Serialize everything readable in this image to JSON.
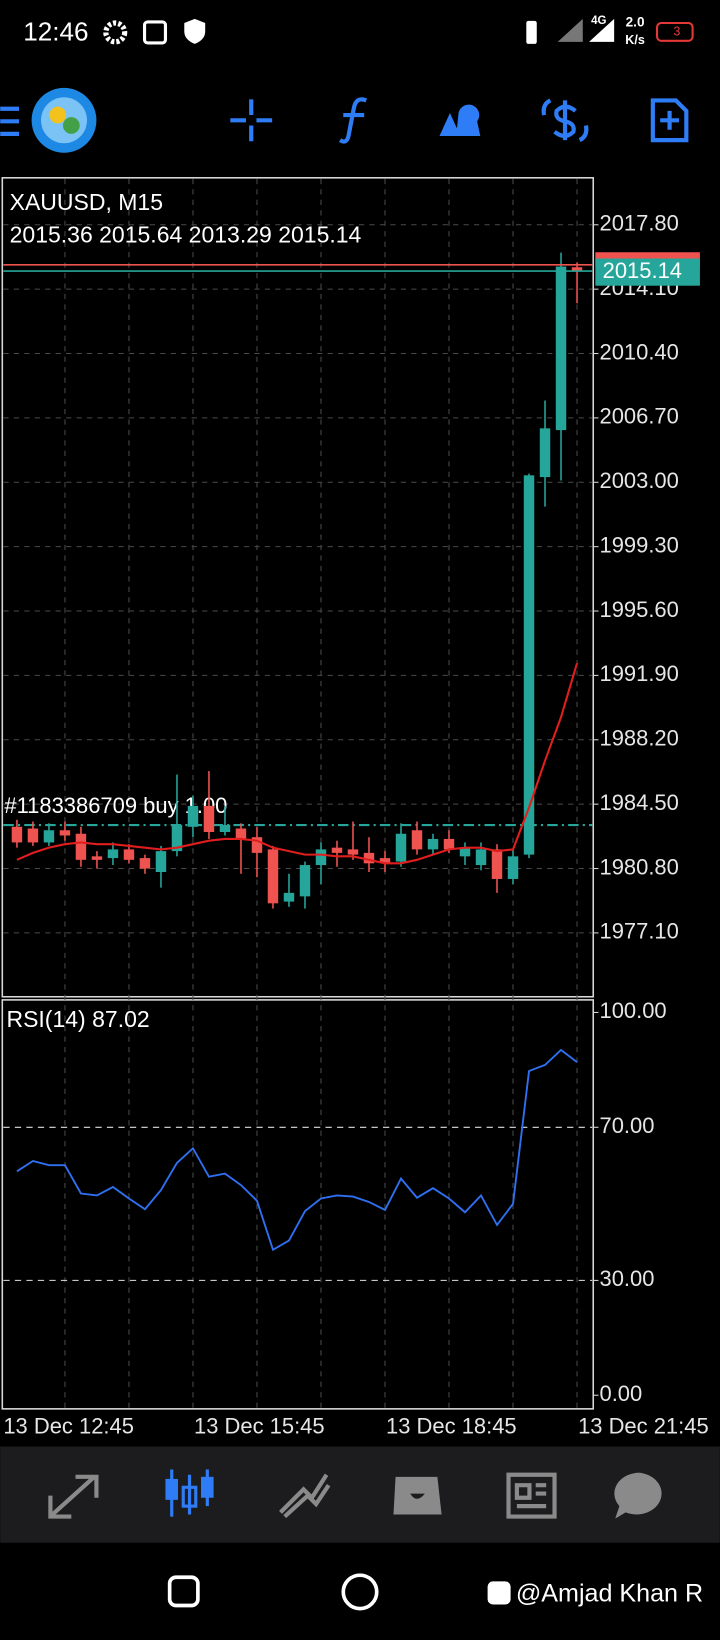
{
  "status_bar": {
    "time": "12:46",
    "network": "4G",
    "speed": "2.0",
    "speed_unit": "K/s",
    "battery": "3"
  },
  "chart_data": [
    {
      "type": "candlestick",
      "title": "XAUUSD, M15",
      "categories": [
        "13 Dec 12:45",
        null,
        null,
        null,
        null,
        null,
        null,
        null,
        null,
        null,
        null,
        "13 Dec 15:45",
        null,
        null,
        null,
        null,
        null,
        null,
        null,
        null,
        null,
        null,
        null,
        "13 Dec 18:45",
        null,
        null,
        null,
        null,
        null,
        null,
        null,
        null,
        null,
        null,
        null,
        "13 Dec 21:45"
      ],
      "open": [
        1983.2,
        1983.1,
        1982.3,
        1983.0,
        1982.8,
        1981.5,
        1981.4,
        1981.9,
        1981.4,
        1980.6,
        1981.8,
        1983.2,
        1984.4,
        1982.9,
        1983.1,
        1982.6,
        1981.9,
        1978.9,
        1979.2,
        1981.0,
        1982.0,
        1981.9,
        1981.7,
        1981.4,
        1981.2,
        1983.0,
        1981.9,
        1982.5,
        1981.5,
        1981.0,
        1981.9,
        1980.2,
        1981.6,
        2003.3,
        2006.0,
        2015.36
      ],
      "high": [
        1983.6,
        1983.5,
        1983.4,
        1983.5,
        1983.2,
        1981.8,
        1982.3,
        1982.2,
        1981.6,
        1982.1,
        1986.2,
        1985.0,
        1986.4,
        1984.4,
        1983.4,
        1983.2,
        1982.1,
        1980.5,
        1981.2,
        1982.3,
        1982.4,
        1983.5,
        1982.6,
        1981.8,
        1983.4,
        1983.5,
        1982.8,
        1983.0,
        1982.3,
        1982.3,
        1982.2,
        1981.9,
        2003.5,
        2007.7,
        2016.2,
        2015.64
      ],
      "low": [
        1982.0,
        1982.1,
        1982.1,
        1982.4,
        1980.9,
        1980.8,
        1981.0,
        1981.1,
        1980.5,
        1979.7,
        1981.5,
        1982.6,
        1982.5,
        1982.7,
        1980.5,
        1980.3,
        1978.5,
        1978.6,
        1978.5,
        1979.9,
        1980.9,
        1981.3,
        1980.6,
        1980.6,
        1980.9,
        1981.6,
        1981.6,
        1981.7,
        1981.0,
        1980.7,
        1979.4,
        1979.9,
        1981.4,
        2001.6,
        2003.1,
        2013.29
      ],
      "close": [
        1982.3,
        1982.3,
        1983.0,
        1982.7,
        1981.3,
        1981.3,
        1981.9,
        1981.3,
        1980.8,
        1981.8,
        1983.3,
        1984.4,
        1982.9,
        1983.3,
        1982.5,
        1981.7,
        1978.8,
        1979.4,
        1981.0,
        1981.9,
        1981.7,
        1981.6,
        1981.1,
        1981.1,
        1982.8,
        1981.9,
        1982.5,
        1981.9,
        1982.0,
        1981.9,
        1980.2,
        1981.5,
        2003.4,
        2006.1,
        2015.4,
        2015.14
      ],
      "up_color": "#26a69a",
      "down_color": "#ef5350",
      "moving_average": {
        "color": "#e01e1e",
        "values": [
          1981.3,
          1981.7,
          1982.0,
          1982.2,
          1982.3,
          1982.2,
          1982.2,
          1982.1,
          1982.0,
          1981.9,
          1982.0,
          1982.2,
          1982.4,
          1982.5,
          1982.5,
          1982.4,
          1982.0,
          1981.8,
          1981.6,
          1981.6,
          1981.5,
          1981.5,
          1981.3,
          1981.1,
          1981.1,
          1981.3,
          1981.6,
          1981.9,
          1982.0,
          1982.0,
          1981.8,
          1981.9,
          1984.3,
          1987.0,
          1989.5,
          1992.6
        ]
      },
      "bid_price": 2015.14,
      "ask_price": 2015.5,
      "order": {
        "label": "#1183386709 buy 1.00",
        "price": 1983.3
      },
      "ylim": [
        1973.43,
        2020.38
      ],
      "yticks": [
        {
          "value": 2017.8,
          "label": "2017.80"
        },
        {
          "value": 2014.1,
          "label": "2014.10"
        },
        {
          "value": 2010.4,
          "label": "2010.40"
        },
        {
          "value": 2006.7,
          "label": "2006.70"
        },
        {
          "value": 2003.0,
          "label": "2003.00"
        },
        {
          "value": 1999.3,
          "label": "1999.30"
        },
        {
          "value": 1995.6,
          "label": "1995.60"
        },
        {
          "value": 1991.9,
          "label": "1991.90"
        },
        {
          "value": 1988.2,
          "label": "1988.20"
        },
        {
          "value": 1984.5,
          "label": "1984.50"
        },
        {
          "value": 1980.8,
          "label": "1980.80"
        },
        {
          "value": 1977.1,
          "label": "1977.10"
        }
      ],
      "grid": true
    },
    {
      "type": "line",
      "series": [
        {
          "name": "RSI(14)",
          "color": "#2f6ff0",
          "values": [
            58.5,
            61.2,
            60.1,
            60.1,
            52.7,
            52.2,
            54.4,
            51.4,
            48.6,
            53.6,
            60.7,
            64.5,
            57.1,
            57.9,
            54.9,
            50.8,
            38.0,
            40.4,
            48.1,
            51.4,
            52.2,
            51.9,
            50.5,
            48.4,
            56.6,
            51.6,
            54.1,
            51.4,
            47.8,
            52.2,
            44.5,
            50.0,
            84.7,
            86.3,
            90.2,
            87.02
          ]
        }
      ],
      "ylim": [
        0,
        100
      ],
      "yticks": [
        {
          "value": 100,
          "label": "100.00"
        },
        {
          "value": 70,
          "label": "70.00"
        },
        {
          "value": 30,
          "label": "30.00"
        },
        {
          "value": 0,
          "label": "0.00"
        }
      ],
      "grid": true
    }
  ],
  "watermark": "@Amjad Khan R"
}
